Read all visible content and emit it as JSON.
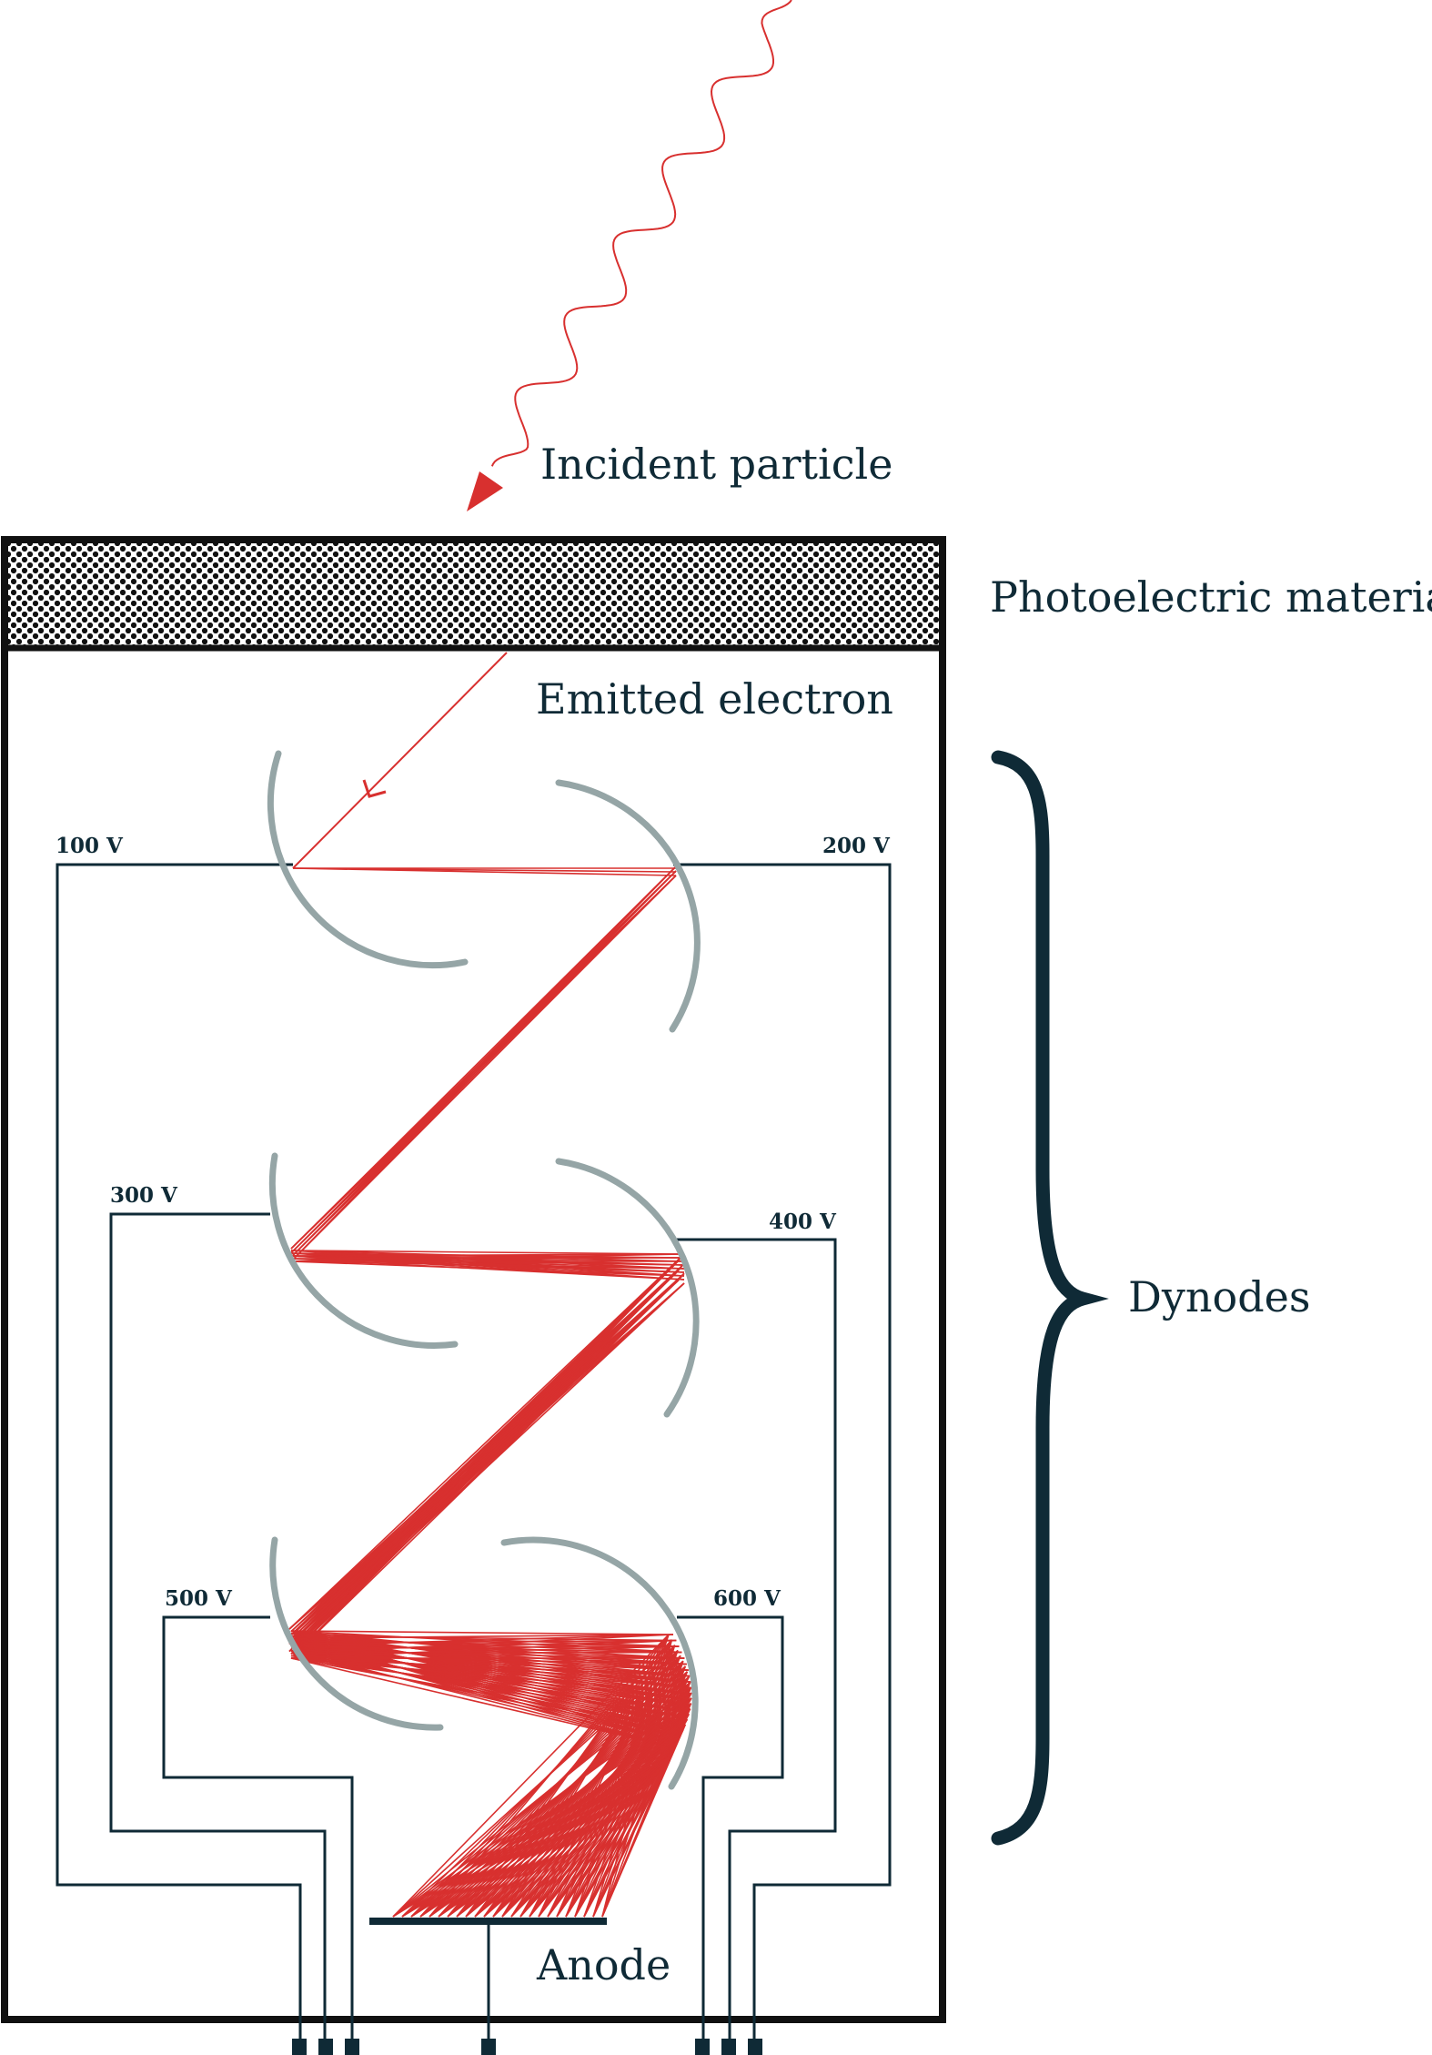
{
  "labels": {
    "incident": "Incident particle",
    "photoelectric": "Photoelectric material",
    "emitted": "Emitted electron",
    "dynodes": "Dynodes",
    "anode": "Anode"
  },
  "voltages": [
    "100 V",
    "200 V",
    "300 V",
    "400 V",
    "500 V",
    "600 V"
  ],
  "colors": {
    "ink": "#0f2a36",
    "electron": "#d8302f",
    "dynode": "#95a5a6"
  }
}
